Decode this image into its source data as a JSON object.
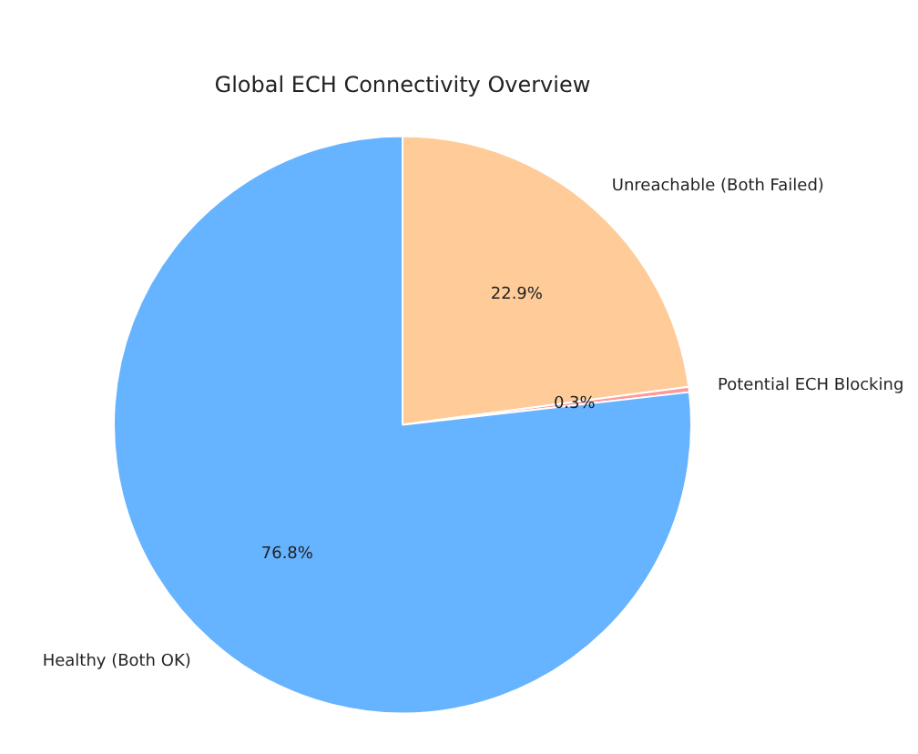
{
  "chart_data": {
    "type": "pie",
    "title": "Global ECH Connectivity Overview",
    "categories": [
      "Unreachable (Both Failed)",
      "Potential ECH Blocking",
      "Healthy (Both OK)"
    ],
    "values": [
      22.9,
      0.3,
      76.8
    ],
    "colors": [
      "#ffcc99",
      "#ff9999",
      "#66b3ff"
    ],
    "value_labels": [
      "22.9%",
      "0.3%",
      "76.8%"
    ],
    "legend": false
  }
}
